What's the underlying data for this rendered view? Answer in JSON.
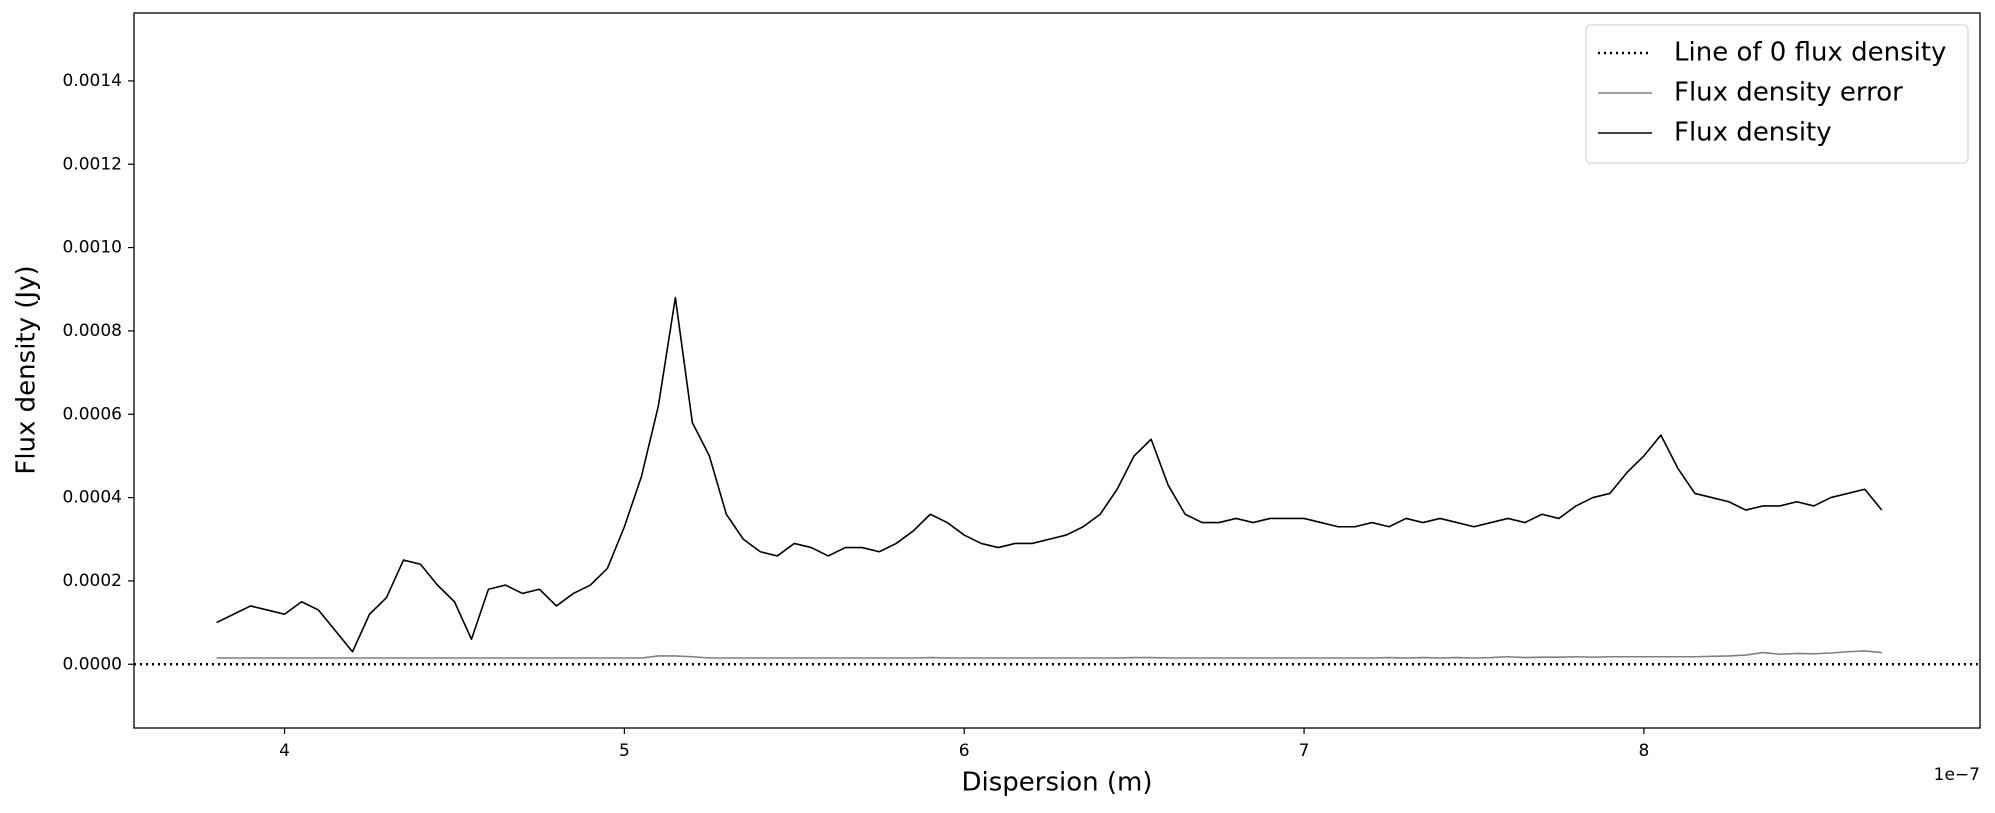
{
  "chart_data": {
    "type": "line",
    "xlabel": "Dispersion (m)",
    "ylabel": "Flux density (Jy)",
    "x_offset_label": "1e−7",
    "xlim": [
      3.557,
      8.989
    ],
    "ylim": [
      -0.000153,
      0.001563
    ],
    "xticks": [
      4,
      5,
      6,
      7,
      8
    ],
    "yticks": [
      {
        "value": 0,
        "label": "0.0000"
      },
      0.0002,
      0.0004,
      0.0006,
      0.0008,
      {
        "value": 0.001,
        "label": "0.0010"
      },
      0.0012,
      0.0014
    ],
    "grid": false,
    "legend": "upper right",
    "x": [
      3.8,
      3.85,
      3.9,
      3.95,
      4.0,
      4.05,
      4.1,
      4.15,
      4.2,
      4.25,
      4.3,
      4.35,
      4.4,
      4.45,
      4.5,
      4.55,
      4.6,
      4.65,
      4.7,
      4.75,
      4.8,
      4.85,
      4.9,
      4.95,
      5.0,
      5.05,
      5.1,
      5.15,
      5.2,
      5.25,
      5.3,
      5.35,
      5.4,
      5.45,
      5.5,
      5.55,
      5.6,
      5.65,
      5.7,
      5.75,
      5.8,
      5.85,
      5.9,
      5.95,
      6.0,
      6.05,
      6.1,
      6.15,
      6.2,
      6.25,
      6.3,
      6.35,
      6.4,
      6.45,
      6.5,
      6.55,
      6.6,
      6.65,
      6.7,
      6.75,
      6.8,
      6.85,
      6.9,
      6.95,
      7.0,
      7.05,
      7.1,
      7.15,
      7.2,
      7.25,
      7.3,
      7.35,
      7.4,
      7.45,
      7.5,
      7.55,
      7.6,
      7.65,
      7.7,
      7.75,
      7.8,
      7.85,
      7.9,
      7.95,
      8.0,
      8.05,
      8.1,
      8.15,
      8.2,
      8.25,
      8.3,
      8.35,
      8.4,
      8.45,
      8.5,
      8.55,
      8.6,
      8.65,
      8.7
    ],
    "series": [
      {
        "name": "Line of 0 flux density",
        "color": "#000000",
        "style": "dotted",
        "x": [
          3.557,
          8.989
        ],
        "values": [
          0,
          0
        ]
      },
      {
        "name": "Flux density error",
        "color": "#808080",
        "style": "solid",
        "values": [
          1.5e-05,
          1.5e-05,
          1.5e-05,
          1.5e-05,
          1.5e-05,
          1.5e-05,
          1.5e-05,
          1.5e-05,
          1.5e-05,
          1.5e-05,
          1.5e-05,
          1.5e-05,
          1.5e-05,
          1.5e-05,
          1.5e-05,
          1.5e-05,
          1.5e-05,
          1.5e-05,
          1.5e-05,
          1.5e-05,
          1.5e-05,
          1.5e-05,
          1.5e-05,
          1.5e-05,
          1.5e-05,
          1.5e-05,
          2e-05,
          2e-05,
          1.8e-05,
          1.5e-05,
          1.5e-05,
          1.5e-05,
          1.5e-05,
          1.5e-05,
          1.5e-05,
          1.5e-05,
          1.5e-05,
          1.5e-05,
          1.5e-05,
          1.5e-05,
          1.5e-05,
          1.5e-05,
          1.6e-05,
          1.5e-05,
          1.5e-05,
          1.5e-05,
          1.5e-05,
          1.5e-05,
          1.5e-05,
          1.5e-05,
          1.5e-05,
          1.5e-05,
          1.5e-05,
          1.5e-05,
          1.6e-05,
          1.6e-05,
          1.5e-05,
          1.5e-05,
          1.5e-05,
          1.5e-05,
          1.5e-05,
          1.5e-05,
          1.5e-05,
          1.5e-05,
          1.5e-05,
          1.5e-05,
          1.5e-05,
          1.5e-05,
          1.5e-05,
          1.6e-05,
          1.5e-05,
          1.6e-05,
          1.5e-05,
          1.6e-05,
          1.5e-05,
          1.6e-05,
          1.8e-05,
          1.6e-05,
          1.7e-05,
          1.7e-05,
          1.8e-05,
          1.7e-05,
          1.8e-05,
          1.8e-05,
          1.8e-05,
          1.8e-05,
          1.8e-05,
          1.8e-05,
          1.9e-05,
          2e-05,
          2.2e-05,
          2.8e-05,
          2.4e-05,
          2.6e-05,
          2.5e-05,
          2.7e-05,
          3e-05,
          3.2e-05,
          2.8e-05
        ]
      },
      {
        "name": "Flux density",
        "color": "#000000",
        "style": "solid",
        "values": [
          0.0001,
          0.00012,
          0.00014,
          0.00013,
          0.00012,
          0.00015,
          0.00013,
          8e-05,
          3e-05,
          0.00012,
          0.00016,
          0.00025,
          0.00024,
          0.00019,
          0.00015,
          6e-05,
          0.00018,
          0.00019,
          0.00017,
          0.00018,
          0.00014,
          0.00017,
          0.00019,
          0.00023,
          0.00033,
          0.00045,
          0.00062,
          0.00088,
          0.00058,
          0.0005,
          0.00036,
          0.0003,
          0.00027,
          0.00026,
          0.00029,
          0.00028,
          0.00026,
          0.00028,
          0.00028,
          0.00027,
          0.00029,
          0.00032,
          0.00036,
          0.00034,
          0.00031,
          0.00029,
          0.00028,
          0.00029,
          0.00029,
          0.0003,
          0.00031,
          0.00033,
          0.00036,
          0.00042,
          0.0005,
          0.00054,
          0.00043,
          0.00036,
          0.00034,
          0.00034,
          0.00035,
          0.00034,
          0.00035,
          0.00035,
          0.00035,
          0.00034,
          0.00033,
          0.00033,
          0.00034,
          0.00033,
          0.00035,
          0.00034,
          0.00035,
          0.00034,
          0.00033,
          0.00034,
          0.00035,
          0.00034,
          0.00036,
          0.00035,
          0.00038,
          0.0004,
          0.00041,
          0.00046,
          0.0005,
          0.00055,
          0.00047,
          0.00041,
          0.0004,
          0.00039,
          0.00037,
          0.00038,
          0.00038,
          0.00039,
          0.00038,
          0.0004,
          0.00041,
          0.00042,
          0.00037
        ]
      }
    ]
  }
}
